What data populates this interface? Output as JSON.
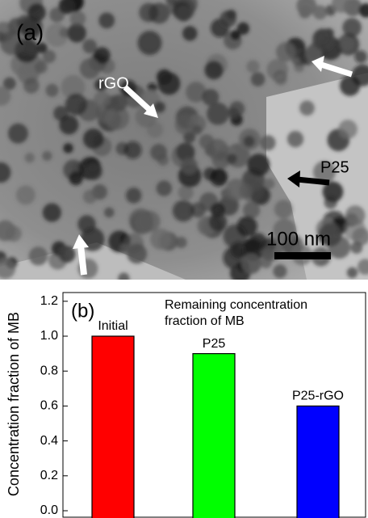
{
  "micrograph": {
    "panel_label": "(a)",
    "annotations": [
      "rGO",
      "P25"
    ],
    "scale_bar": "100 nm"
  },
  "chart_data": {
    "type": "bar",
    "panel_label": "(b)",
    "annotation": "Remaining concentration fraction of MB",
    "y_label": "Concentration fraction of MB",
    "categories": [
      "Initial",
      "P25",
      "P25-rGO"
    ],
    "values": [
      1.0,
      0.9,
      0.6
    ],
    "colors": [
      "#ff0000",
      "#00ff00",
      "#0000ff"
    ],
    "ylim": [
      0,
      1.25
    ],
    "yticks": [
      {
        "value": 0,
        "label": "0.0"
      },
      0.2,
      0.4,
      0.6,
      0.8,
      {
        "value": 1,
        "label": "1.0"
      },
      1.2
    ]
  }
}
